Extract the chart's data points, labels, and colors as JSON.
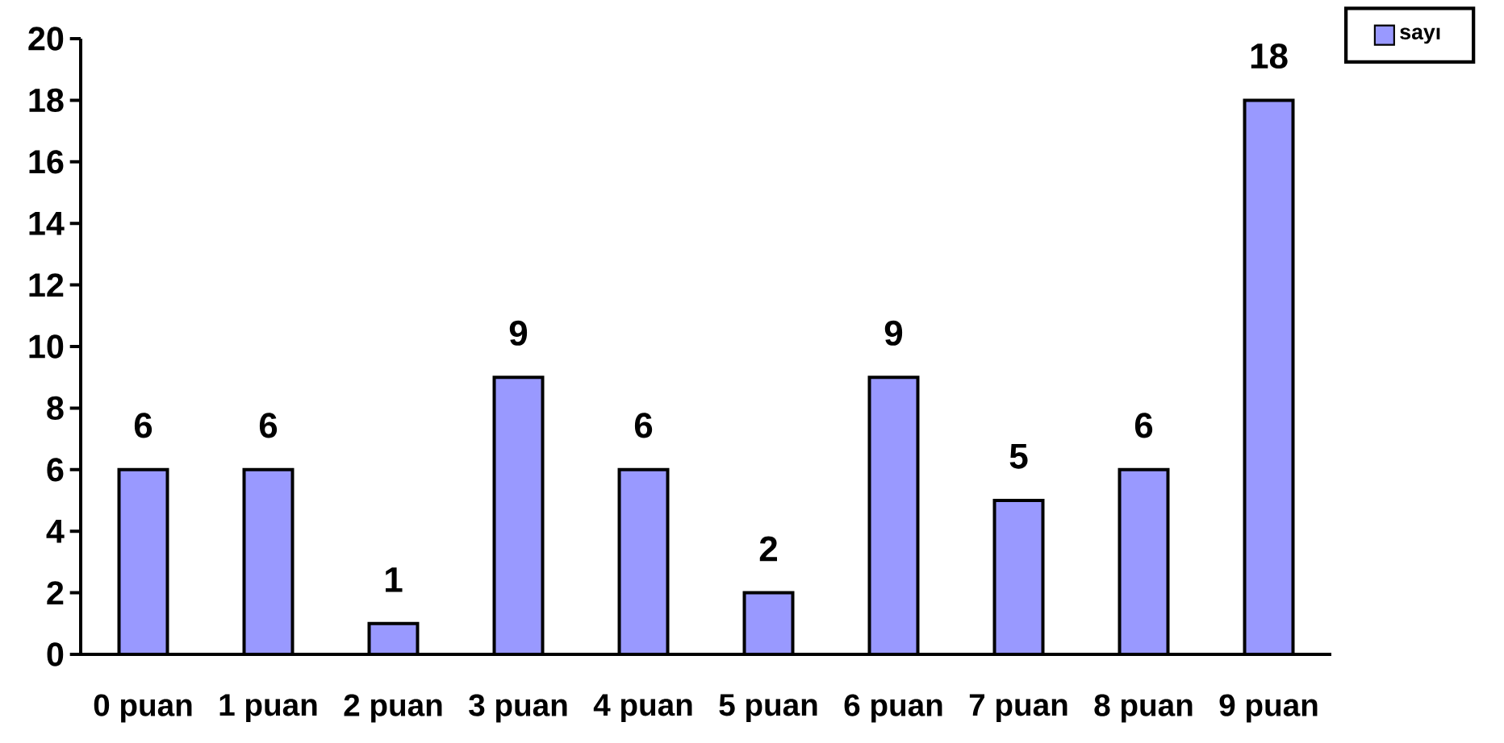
{
  "chart_data": {
    "type": "bar",
    "categories": [
      "0 puan",
      "1 puan",
      "2 puan",
      "3 puan",
      "4 puan",
      "5 puan",
      "6 puan",
      "7 puan",
      "8 puan",
      "9 puan"
    ],
    "series": [
      {
        "name": "sayı",
        "color": "#9999ff",
        "values": [
          6,
          6,
          1,
          9,
          6,
          2,
          9,
          5,
          6,
          18
        ]
      }
    ],
    "ylim": [
      0,
      20
    ],
    "yticks": [
      0,
      2,
      4,
      6,
      8,
      10,
      12,
      14,
      16,
      18,
      20
    ],
    "legend": "top right",
    "data_labels": true
  }
}
